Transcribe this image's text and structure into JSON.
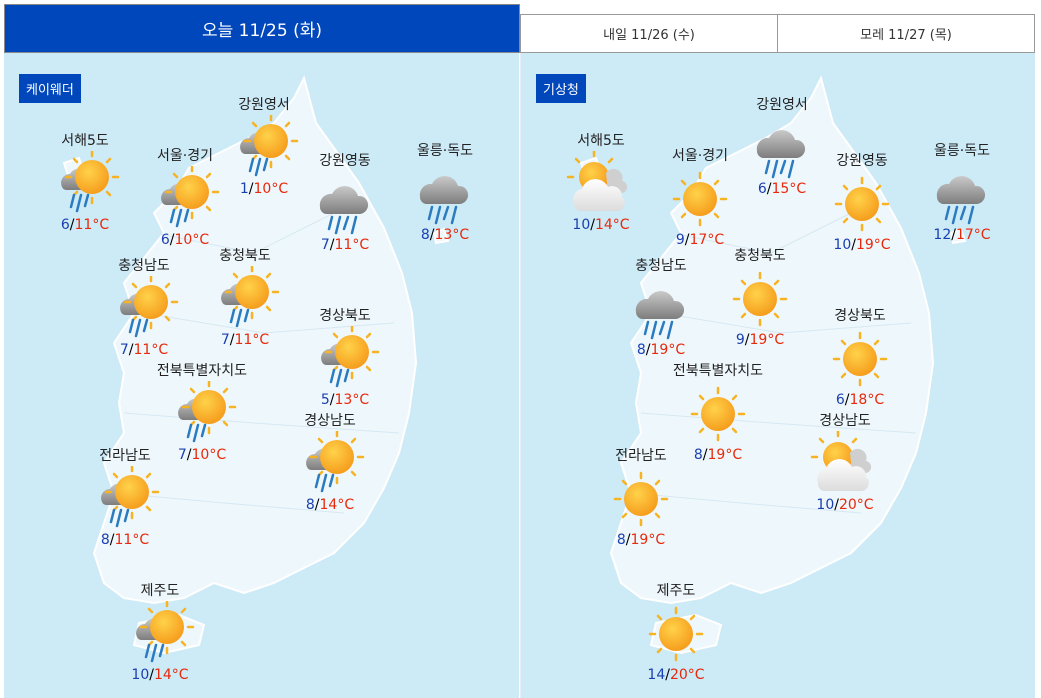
{
  "tabs": [
    {
      "label": "오늘 11/25 (화)",
      "active": true
    },
    {
      "label": "내일 11/26 (수)"
    },
    {
      "label": "모레 11/27 (목)"
    }
  ],
  "panels": [
    {
      "source": "케이웨더",
      "regions": [
        {
          "name": "서해5도",
          "icon": "sun-rain",
          "low": "6",
          "high": "11°C"
        },
        {
          "name": "서울·경기",
          "icon": "sun-rain",
          "low": "6",
          "high": "10°C"
        },
        {
          "name": "강원영서",
          "icon": "sun-rain",
          "low": "1",
          "high": "10°C"
        },
        {
          "name": "강원영동",
          "icon": "rain",
          "low": "7",
          "high": "11°C"
        },
        {
          "name": "울릉·독도",
          "icon": "rain",
          "low": "8",
          "high": "13°C"
        },
        {
          "name": "충청남도",
          "icon": "sun-rain",
          "low": "7",
          "high": "11°C"
        },
        {
          "name": "충청북도",
          "icon": "sun-rain",
          "low": "7",
          "high": "11°C"
        },
        {
          "name": "경상북도",
          "icon": "sun-rain",
          "low": "5",
          "high": "13°C"
        },
        {
          "name": "전북특별자치도",
          "icon": "sun-rain",
          "low": "7",
          "high": "10°C"
        },
        {
          "name": "경상남도",
          "icon": "sun-rain",
          "low": "8",
          "high": "14°C"
        },
        {
          "name": "전라남도",
          "icon": "sun-rain",
          "low": "8",
          "high": "11°C"
        },
        {
          "name": "제주도",
          "icon": "sun-rain",
          "low": "10",
          "high": "14°C"
        }
      ]
    },
    {
      "source": "기상청",
      "regions": [
        {
          "name": "서해5도",
          "icon": "partly-cloudy",
          "low": "10",
          "high": "14°C"
        },
        {
          "name": "서울·경기",
          "icon": "sun",
          "low": "9",
          "high": "17°C"
        },
        {
          "name": "강원영서",
          "icon": "rain",
          "low": "6",
          "high": "15°C"
        },
        {
          "name": "강원영동",
          "icon": "sun",
          "low": "10",
          "high": "19°C"
        },
        {
          "name": "울릉·독도",
          "icon": "rain",
          "low": "12",
          "high": "17°C"
        },
        {
          "name": "충청남도",
          "icon": "rain",
          "low": "8",
          "high": "19°C"
        },
        {
          "name": "충청북도",
          "icon": "sun",
          "low": "9",
          "high": "19°C"
        },
        {
          "name": "경상북도",
          "icon": "sun",
          "low": "6",
          "high": "18°C"
        },
        {
          "name": "전북특별자치도",
          "icon": "sun",
          "low": "8",
          "high": "19°C"
        },
        {
          "name": "경상남도",
          "icon": "partly-cloudy",
          "low": "10",
          "high": "20°C"
        },
        {
          "name": "전라남도",
          "icon": "sun",
          "low": "8",
          "high": "19°C"
        },
        {
          "name": "제주도",
          "icon": "sun",
          "low": "14",
          "high": "20°C"
        }
      ]
    }
  ],
  "colors": {
    "accent": "#0047bb",
    "low": "#1a3fb0",
    "high": "#e8290b",
    "background": "#cdeaf7"
  }
}
